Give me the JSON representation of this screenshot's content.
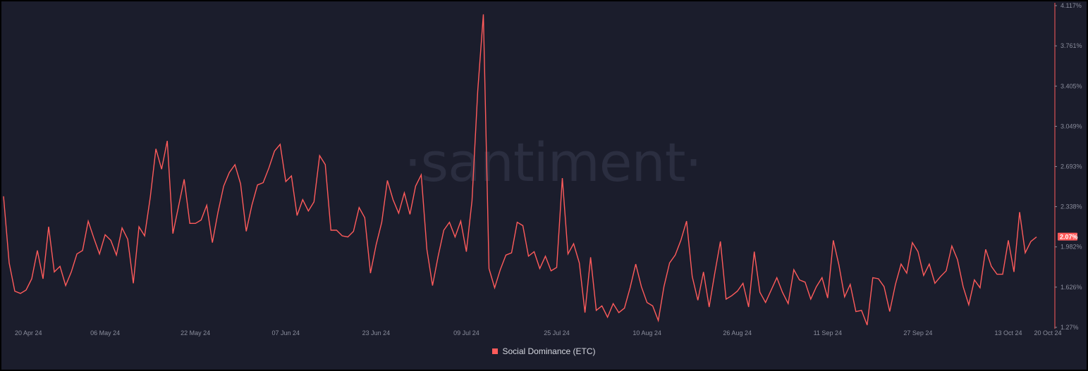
{
  "watermark": "·santiment·",
  "colors": {
    "background": "#1b1d2c",
    "line": "#ff5b5b",
    "axis": "#8a8d9c",
    "current_badge": "#ff5b5b"
  },
  "legend": {
    "label": "Social Dominance (ETC)"
  },
  "current_value_label": "2.07%",
  "chart_data": {
    "type": "line",
    "title": "",
    "xlabel": "",
    "ylabel": "",
    "x_range": [
      "2024-04-18",
      "2024-10-20"
    ],
    "x_ticks": [
      "20 Apr 24",
      "06 May 24",
      "22 May 24",
      "07 Jun 24",
      "23 Jun 24",
      "09 Jul 24",
      "25 Jul 24",
      "10 Aug 24",
      "26 Aug 24",
      "11 Sep 24",
      "27 Sep 24",
      "13 Oct 24",
      "20 Oct 24"
    ],
    "x_tick_dates": [
      "2024-04-20",
      "2024-05-06",
      "2024-05-22",
      "2024-06-07",
      "2024-06-23",
      "2024-07-09",
      "2024-07-25",
      "2024-08-10",
      "2024-08-26",
      "2024-09-11",
      "2024-09-27",
      "2024-10-13",
      "2024-10-20"
    ],
    "y_ticks": [
      "4.117%",
      "3.761%",
      "3.405%",
      "3.049%",
      "2.693%",
      "2.338%",
      "1.982%",
      "1.626%",
      "1.27%"
    ],
    "y_tick_values": [
      4.117,
      3.761,
      3.405,
      3.049,
      2.693,
      2.338,
      1.982,
      1.626,
      1.27
    ],
    "ylim": [
      1.27,
      4.117
    ],
    "y_axis_position": "right",
    "grid": false,
    "legend_position": "bottom-center",
    "series": [
      {
        "name": "Social Dominance (ETC)",
        "y": [
          2.43,
          1.84,
          1.59,
          1.57,
          1.6,
          1.7,
          1.95,
          1.7,
          2.16,
          1.76,
          1.81,
          1.64,
          1.76,
          1.92,
          1.95,
          2.21,
          2.06,
          1.92,
          2.09,
          2.04,
          1.91,
          2.15,
          2.05,
          1.66,
          2.16,
          2.08,
          2.42,
          2.85,
          2.67,
          2.92,
          2.1,
          2.34,
          2.58,
          2.19,
          2.19,
          2.22,
          2.35,
          2.02,
          2.29,
          2.52,
          2.64,
          2.71,
          2.54,
          2.12,
          2.35,
          2.53,
          2.55,
          2.68,
          2.83,
          2.89,
          2.56,
          2.61,
          2.26,
          2.4,
          2.3,
          2.38,
          2.79,
          2.71,
          2.13,
          2.13,
          2.08,
          2.07,
          2.12,
          2.33,
          2.24,
          1.75,
          2.0,
          2.2,
          2.57,
          2.4,
          2.28,
          2.46,
          2.27,
          2.52,
          2.62,
          1.96,
          1.64,
          1.9,
          2.13,
          2.2,
          2.07,
          2.21,
          1.94,
          2.39,
          3.36,
          4.04,
          1.79,
          1.62,
          1.78,
          1.91,
          1.93,
          2.2,
          2.17,
          1.9,
          1.94,
          1.79,
          1.9,
          1.77,
          1.8,
          2.59,
          1.92,
          2.01,
          1.84,
          1.4,
          1.89,
          1.42,
          1.46,
          1.36,
          1.48,
          1.4,
          1.44,
          1.62,
          1.83,
          1.63,
          1.49,
          1.46,
          1.33,
          1.63,
          1.84,
          1.91,
          2.04,
          2.21,
          1.72,
          1.51,
          1.76,
          1.45,
          1.75,
          2.03,
          1.52,
          1.55,
          1.59,
          1.66,
          1.45,
          1.94,
          1.58,
          1.49,
          1.6,
          1.71,
          1.58,
          1.48,
          1.78,
          1.69,
          1.67,
          1.52,
          1.63,
          1.71,
          1.53,
          2.04,
          1.82,
          1.54,
          1.65,
          1.41,
          1.42,
          1.29,
          1.71,
          1.7,
          1.63,
          1.41,
          1.65,
          1.83,
          1.75,
          2.02,
          1.94,
          1.73,
          1.83,
          1.66,
          1.72,
          1.77,
          1.99,
          1.87,
          1.63,
          1.47,
          1.69,
          1.62,
          1.96,
          1.81,
          1.74,
          1.74,
          2.04,
          1.76,
          2.29,
          1.93,
          2.03,
          2.07
        ]
      }
    ]
  }
}
